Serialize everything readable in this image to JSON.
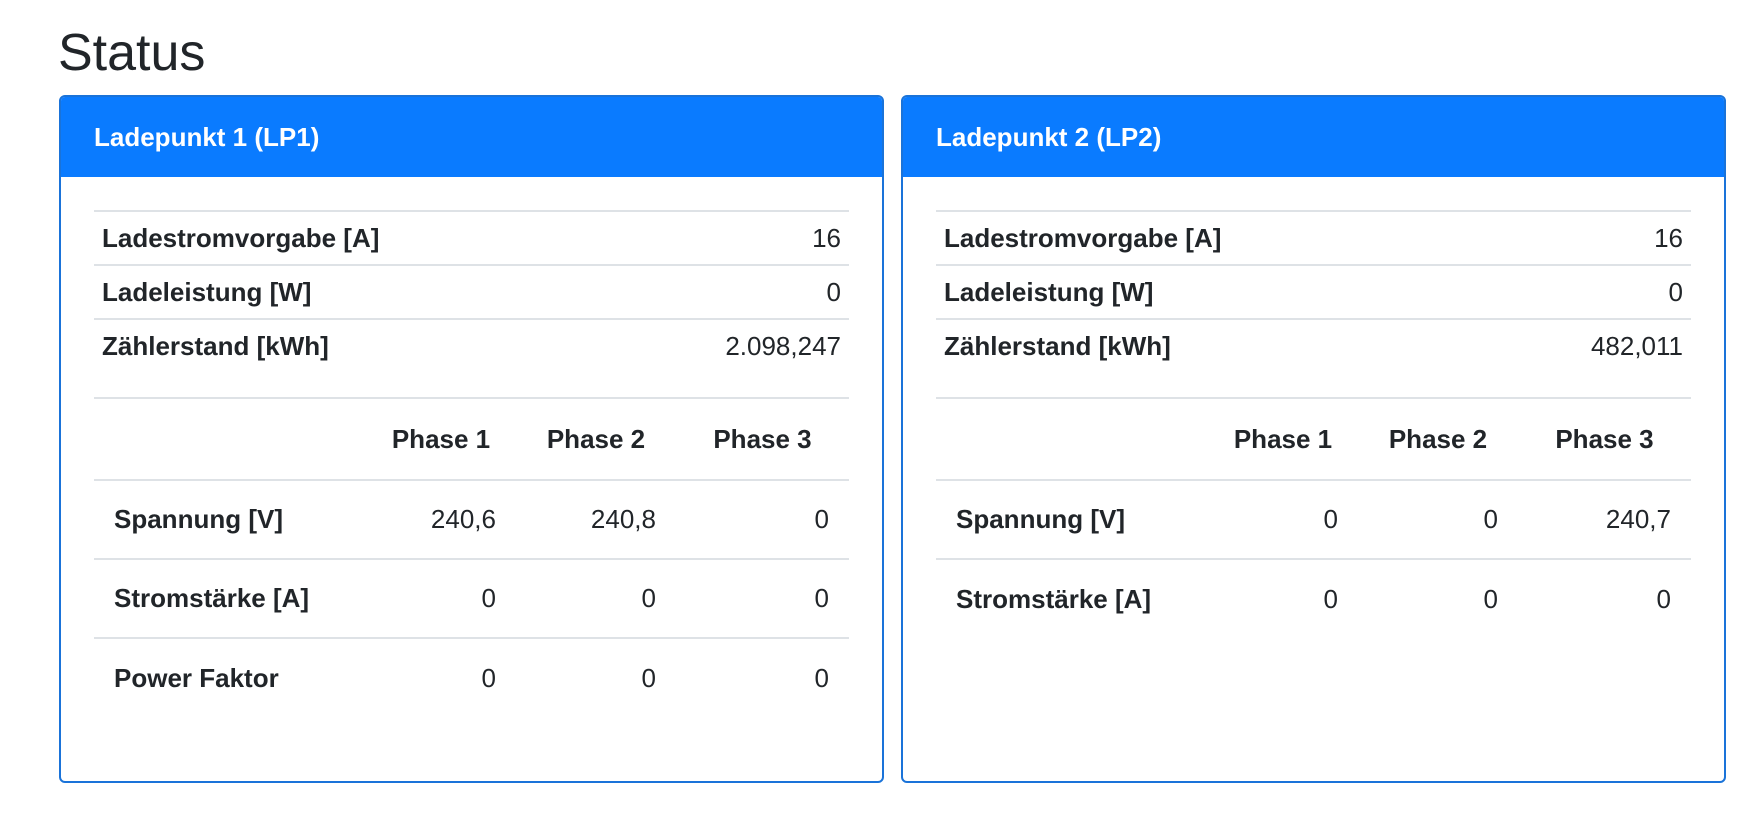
{
  "page": {
    "title": "Status"
  },
  "colors": {
    "header_bg": "#0a7bff",
    "card_border": "#1a73d9",
    "divider": "#dee2e6"
  },
  "cards": [
    {
      "title": "Ladepunkt 1 (LP1)",
      "info": [
        {
          "label": "Ladestromvorgabe [A]",
          "value": "16"
        },
        {
          "label": "Ladeleistung [W]",
          "value": "0"
        },
        {
          "label": "Zählerstand [kWh]",
          "value": "2.098,247"
        }
      ],
      "phase_headers": [
        "",
        "Phase 1",
        "Phase 2",
        "Phase 3"
      ],
      "phase_rows": [
        {
          "label": "Spannung [V]",
          "values": [
            "240,6",
            "240,8",
            "0"
          ]
        },
        {
          "label": "Stromstärke [A]",
          "values": [
            "0",
            "0",
            "0"
          ]
        },
        {
          "label": "Power Faktor",
          "values": [
            "0",
            "0",
            "0"
          ]
        }
      ]
    },
    {
      "title": "Ladepunkt 2 (LP2)",
      "info": [
        {
          "label": "Ladestromvorgabe [A]",
          "value": "16"
        },
        {
          "label": "Ladeleistung [W]",
          "value": "0"
        },
        {
          "label": "Zählerstand [kWh]",
          "value": "482,011"
        }
      ],
      "phase_headers": [
        "",
        "Phase 1",
        "Phase 2",
        "Phase 3"
      ],
      "phase_rows": [
        {
          "label": "Spannung [V]",
          "values": [
            "0",
            "0",
            "240,7"
          ]
        },
        {
          "label": "Stromstärke [A]",
          "values": [
            "0",
            "0",
            "0"
          ]
        }
      ]
    }
  ]
}
